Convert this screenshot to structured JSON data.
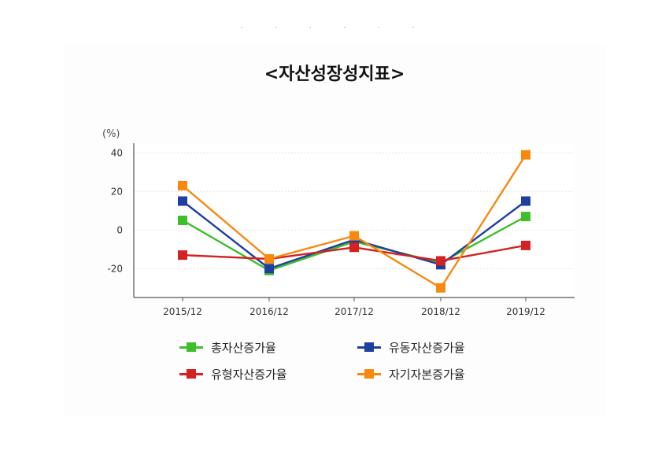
{
  "header": {
    "dots": "· · · · · ·"
  },
  "chart_data": {
    "type": "line",
    "title": "<자산성장성지표>",
    "unit_label": "(%)",
    "categories": [
      "2015/12",
      "2016/12",
      "2017/12",
      "2018/12",
      "2019/12"
    ],
    "yticks": [
      "40",
      "20",
      "0",
      "-20"
    ],
    "ylim": [
      -35,
      45
    ],
    "grid": true,
    "legend_position": "bottom",
    "series": [
      {
        "name": "총자산증가율",
        "color": "#3dbf2a",
        "values": [
          5,
          -21,
          -6,
          -17,
          7
        ]
      },
      {
        "name": "유동자산증가율",
        "color": "#1e3f9e",
        "values": [
          15,
          -20,
          -5,
          -18,
          15
        ]
      },
      {
        "name": "유형자산증가율",
        "color": "#d42121",
        "values": [
          -13,
          -15,
          -9,
          -16,
          -8
        ]
      },
      {
        "name": "자기자본증가율",
        "color": "#f7890f",
        "values": [
          23,
          -15,
          -3,
          -30,
          39
        ]
      }
    ]
  }
}
